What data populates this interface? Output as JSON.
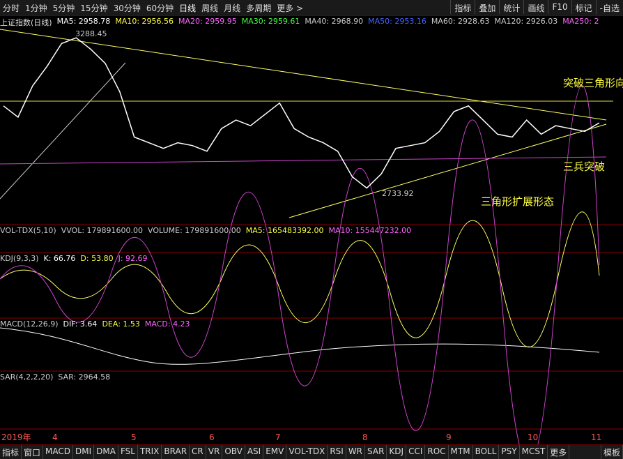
{
  "toolbar": {
    "periods": [
      "分时",
      "1分钟",
      "5分钟",
      "15分钟",
      "30分钟",
      "60分钟",
      "日线",
      "周线",
      "月线",
      "多周期",
      "更多 >"
    ],
    "tools": [
      "指标",
      "叠加",
      "统计",
      "画线",
      "F10",
      "标记",
      "-自选"
    ]
  },
  "price_header": {
    "name": "上证指数(日线)",
    "items": [
      "MA5: 2958.78",
      "MA10: 2956.56",
      "MA20: 2959.95",
      "MA30: 2959.61",
      "MA40: 2968.90",
      "MA50: 2953.16",
      "MA60: 2928.63",
      "MA120: 2926.03",
      "MA250: 2"
    ]
  },
  "annotations": {
    "high": "3288.45",
    "low": "2733.92",
    "breakout": "突破三角形向上",
    "pattern": "三角形扩展形态",
    "soldiers": "三兵突破"
  },
  "chart_data": {
    "type": "line",
    "color": "#ffffff",
    "ylim": [
      2616,
      3305
    ],
    "values": [
      3030,
      2990,
      3100,
      3170,
      3250,
      3270,
      3230,
      3180,
      3080,
      2920,
      2900,
      2880,
      2900,
      2890,
      2870,
      2950,
      2980,
      2960,
      3000,
      3040,
      2950,
      2920,
      2900,
      2870,
      2780,
      2740,
      2790,
      2880,
      2890,
      2900,
      2940,
      3010,
      3030,
      2980,
      2930,
      2920,
      2980,
      2930,
      2960,
      2950,
      2940,
      2970
    ]
  },
  "volume_header": [
    "VOL-TDX(5,10)",
    "VVOL: 179891600.00",
    "VOLUME: 179891600.00",
    "MA5: 165483392.00",
    "MA10: 155447232.00"
  ],
  "kdj_header": [
    "KDJ(9,3,3)",
    "K: 66.76",
    "D: 53.80",
    "J: 92.69"
  ],
  "macd_header": [
    "MACD(12,26,9)",
    "DIF: 3.64",
    "DEA: 1.53",
    "MACD: 4.23"
  ],
  "sar_header": [
    "SAR(4,2,2,20)",
    "SAR: 2964.58"
  ],
  "date_axis": [
    "2019年",
    "4",
    "5",
    "6",
    "7",
    "8",
    "9",
    "10",
    "11"
  ],
  "tabs": [
    "指标",
    "窗口",
    "MACD",
    "DMI",
    "DMA",
    "FSL",
    "TRIX",
    "BRAR",
    "CR",
    "VR",
    "OBV",
    "ASI",
    "EMV",
    "VOL-TDX",
    "RSI",
    "WR",
    "SAR",
    "KDJ",
    "CCI",
    "ROC",
    "MTM",
    "BOLL",
    "PSY",
    "MCST",
    "更多",
    "模板"
  ]
}
